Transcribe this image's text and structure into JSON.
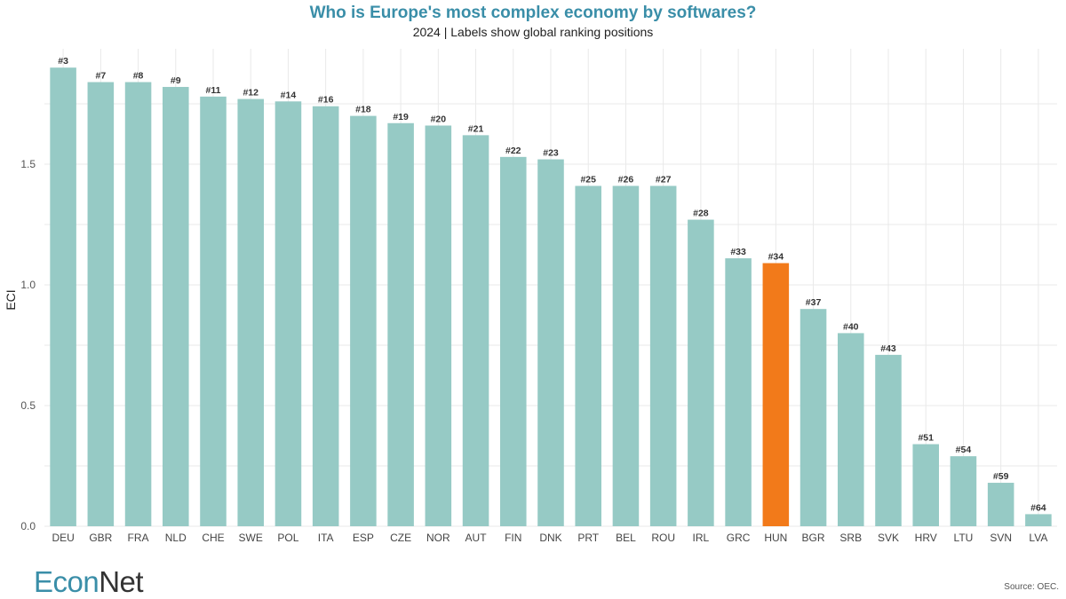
{
  "colors": {
    "bar": "#96cac5",
    "highlight": "#f27a1a",
    "title": "#3a8ea8",
    "grid": "#e9e9e9",
    "logo_econ": "#3a8ea8",
    "logo_net": "#333333"
  },
  "logo": {
    "econ": "Econ",
    "net": "Net"
  },
  "source": "Source: OEC.",
  "chart_data": {
    "type": "bar",
    "title": "Who is Europe's most complex economy by softwares?",
    "subtitle": "2024 | Labels show global ranking positions",
    "xlabel": "",
    "ylabel": "ECI",
    "ylim": [
      0,
      1.9
    ],
    "yticks": [
      "0.0",
      "0.5",
      "1.0",
      "1.5"
    ],
    "ytick_values": [
      0,
      0.5,
      1.0,
      1.5
    ],
    "grid": true,
    "highlight": "HUN",
    "categories": [
      "DEU",
      "GBR",
      "FRA",
      "NLD",
      "CHE",
      "SWE",
      "POL",
      "ITA",
      "ESP",
      "CZE",
      "NOR",
      "AUT",
      "FIN",
      "DNK",
      "PRT",
      "BEL",
      "ROU",
      "IRL",
      "GRC",
      "HUN",
      "BGR",
      "SRB",
      "SVK",
      "HRV",
      "LTU",
      "SVN",
      "LVA"
    ],
    "values": [
      1.9,
      1.84,
      1.84,
      1.82,
      1.78,
      1.77,
      1.76,
      1.74,
      1.7,
      1.67,
      1.66,
      1.62,
      1.53,
      1.52,
      1.41,
      1.41,
      1.41,
      1.27,
      1.11,
      1.09,
      0.9,
      0.8,
      0.71,
      0.34,
      0.29,
      0.18,
      0.05
    ],
    "labels": [
      "#3",
      "#7",
      "#8",
      "#9",
      "#11",
      "#12",
      "#14",
      "#16",
      "#18",
      "#19",
      "#20",
      "#21",
      "#22",
      "#23",
      "#25",
      "#26",
      "#27",
      "#28",
      "#33",
      "#34",
      "#37",
      "#40",
      "#43",
      "#51",
      "#54",
      "#59",
      "#64"
    ]
  }
}
